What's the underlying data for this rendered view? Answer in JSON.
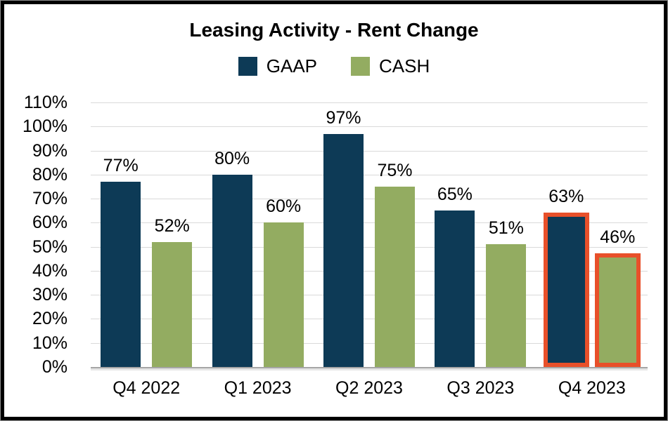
{
  "window": {
    "background": "#ffffff",
    "frame_color": "#000000"
  },
  "chart_data": {
    "type": "bar",
    "title": "Leasing Activity - Rent Change",
    "categories": [
      "Q4 2022",
      "Q1 2023",
      "Q2 2023",
      "Q3 2023",
      "Q4 2023"
    ],
    "series": [
      {
        "name": "GAAP",
        "color": "#0D3A56",
        "values": [
          77,
          80,
          97,
          65,
          63
        ]
      },
      {
        "name": "CASH",
        "color": "#93AC61",
        "values": [
          52,
          60,
          75,
          51,
          46
        ]
      }
    ],
    "unit": "%",
    "data_labels": {
      "GAAP": [
        "77%",
        "80%",
        "97%",
        "65%",
        "63%"
      ],
      "CASH": [
        "52%",
        "60%",
        "75%",
        "51%",
        "46%"
      ]
    },
    "highlighted_category": "Q4 2023",
    "highlight_color": "#E8502A",
    "xlabel": "",
    "ylabel": "",
    "ylim": [
      0,
      110
    ],
    "ytick_step": 10,
    "ytick_labels": [
      "0%",
      "10%",
      "20%",
      "30%",
      "40%",
      "50%",
      "60%",
      "70%",
      "80%",
      "90%",
      "100%",
      "110%"
    ],
    "grid": true,
    "gridline_color": "#D9D9D9",
    "axis_line_color": "#A6A6A6",
    "legend_position": "top"
  }
}
